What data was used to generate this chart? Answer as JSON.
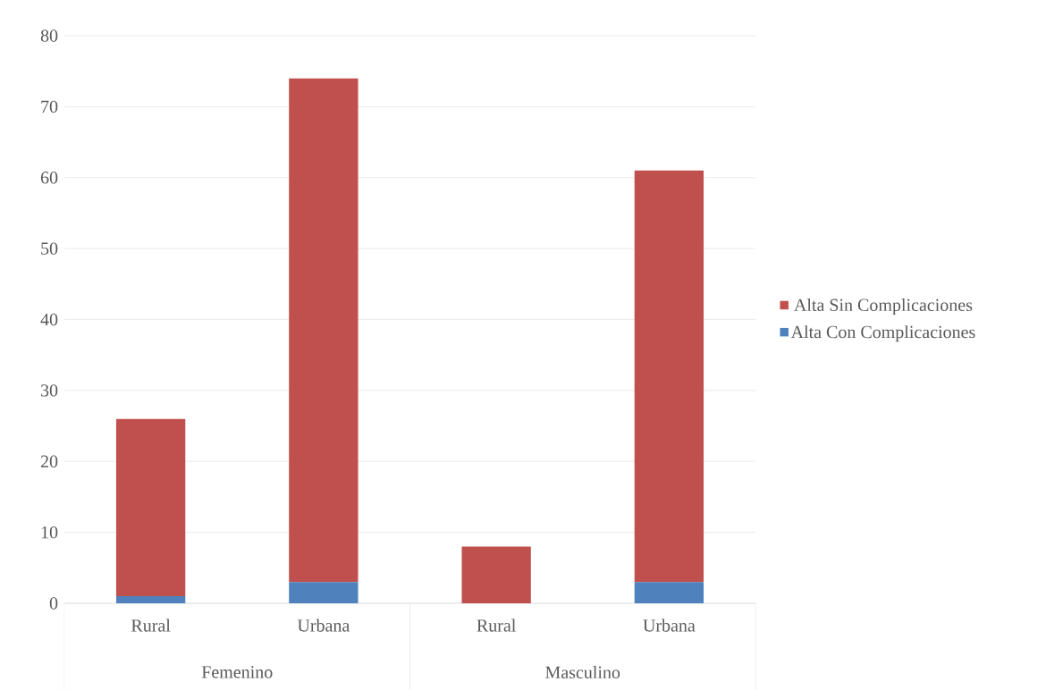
{
  "chart_data": {
    "type": "bar",
    "stacked": true,
    "categories": [
      "Rural",
      "Urbana",
      "Rural",
      "Urbana"
    ],
    "series": [
      {
        "name": "Alta Con Complicaciones",
        "color": "#4f81bd",
        "values": [
          1,
          3,
          0,
          3
        ]
      },
      {
        "name": "Alta Sin Complicaciones",
        "color": "#c0504d",
        "values": [
          25,
          71,
          8,
          58
        ]
      }
    ],
    "annotations": [
      "Femenino",
      "Masculino"
    ],
    "ylim": [
      0,
      80
    ],
    "yticks": [
      0,
      10,
      20,
      30,
      40,
      50,
      60,
      70,
      80
    ],
    "grid": "y",
    "legend": "right"
  }
}
